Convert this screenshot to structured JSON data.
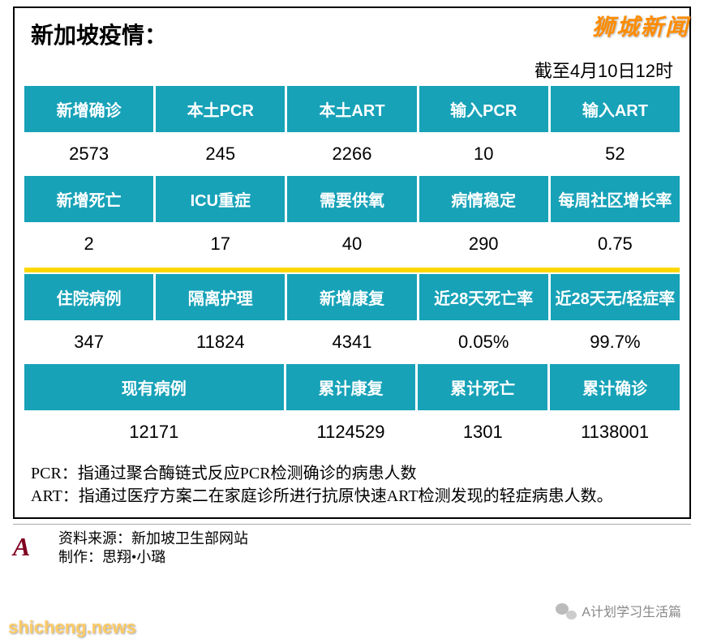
{
  "title": "新加坡疫情：",
  "subtitle": "截至4月10日12时",
  "colors": {
    "header_bg": "#17a2b8",
    "header_fg": "#ffffff",
    "value_bg": "#ffffff",
    "value_fg": "#000000",
    "separator": "#ffd700",
    "border": "#000000"
  },
  "row1_headers": [
    "新增确诊",
    "本土PCR",
    "本土ART",
    "输入PCR",
    "输入ART"
  ],
  "row1_values": [
    "2573",
    "245",
    "2266",
    "10",
    "52"
  ],
  "row2_headers": [
    "新增死亡",
    "ICU重症",
    "需要供氧",
    "病情稳定",
    "每周社区增长率"
  ],
  "row2_values": [
    "2",
    "17",
    "40",
    "290",
    "0.75"
  ],
  "row3_headers": [
    "住院病例",
    "隔离护理",
    "新增康复",
    "近28天死亡率",
    "近28天无/轻症率"
  ],
  "row3_values": [
    "347",
    "11824",
    "4341",
    "0.05%",
    "99.7%"
  ],
  "row4_headers": [
    "现有病例",
    "累计康复",
    "累计死亡",
    "累计确诊"
  ],
  "row4_values": [
    "12171",
    "1124529",
    "1301",
    "1138001"
  ],
  "notes": {
    "pcr": "PCR：指通过聚合酶链式反应PCR检测确诊的病患人数",
    "art": "ART：指通过医疗方案二在家庭诊所进行抗原快速ART检测发现的轻症病患人数。"
  },
  "footer": {
    "source": "资料来源：新加坡卫生部网站",
    "credit": "制作：思翔•小璐"
  },
  "watermarks": {
    "top": "狮城新闻",
    "bottom": "shicheng.news",
    "wechat": "A计划学习生活篇"
  }
}
